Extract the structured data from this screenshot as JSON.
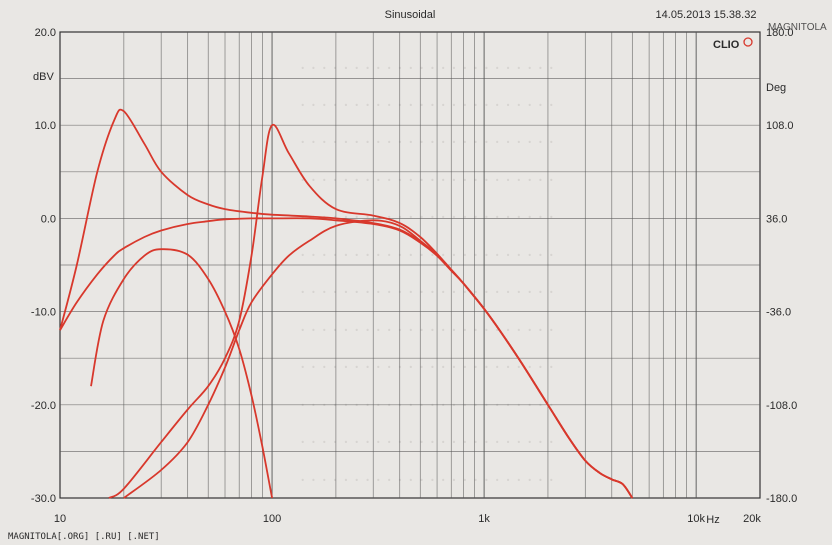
{
  "watermark_top": "MAGNITOLA",
  "footer": "MAGNITOLA[.ORG] [.RU] [.NET]",
  "colors": {
    "curve": "#d8382c",
    "grid": "#555555",
    "paper": "#e9e7e4"
  },
  "chart_data": {
    "type": "line",
    "title": "Sinusoidal",
    "timestamp": "14.05.2013 15.38.32",
    "brand": "CLIO",
    "xscale": "log",
    "xlim": [
      10,
      20000
    ],
    "x_tick_labels": [
      {
        "x": 10,
        "label": "10"
      },
      {
        "x": 100,
        "label": "100"
      },
      {
        "x": 1000,
        "label": "1k"
      },
      {
        "x": 10000,
        "label": "10k"
      },
      {
        "x": 20000,
        "label": "20k"
      }
    ],
    "xunit": "Hz",
    "ylabel_left": "dBV",
    "ylim_left": [
      -30,
      20
    ],
    "left_ticks": [
      20,
      10,
      0,
      -10,
      -20,
      -30
    ],
    "left_tick_labels": [
      "20.0",
      "10.0",
      "0.0",
      "-10.0",
      "-20.0",
      "-30.0"
    ],
    "ylabel_right": "Deg",
    "ylim_right": [
      -180,
      180
    ],
    "right_ticks": [
      180,
      108,
      36,
      -36,
      -108,
      -180
    ],
    "right_tick_labels": [
      "180.0",
      "108.0",
      "36.0",
      "-36.0",
      "-108.0",
      "-180.0"
    ],
    "grid": true,
    "series": [
      {
        "x": [
          10,
          12,
          15,
          18,
          20,
          25,
          30,
          40,
          50,
          60,
          80,
          100,
          150,
          200,
          300,
          400,
          500,
          600,
          700,
          800,
          1000,
          1200,
          1500,
          2000,
          2500,
          3000,
          3500,
          4000,
          4500,
          5000
        ],
        "values": [
          -12,
          -5,
          5,
          10.5,
          11.5,
          8,
          5,
          2.5,
          1.5,
          1,
          0.6,
          0.4,
          0.2,
          0,
          -0.5,
          -1.2,
          -2.5,
          -4,
          -5.6,
          -7,
          -9.7,
          -12.2,
          -15.5,
          -20,
          -23.5,
          -26,
          -27.3,
          -28,
          -28.5,
          -30
        ]
      },
      {
        "x": [
          10,
          12,
          15,
          18,
          20,
          25,
          30,
          40,
          50,
          60,
          80,
          100,
          150,
          200,
          300,
          400,
          500,
          600,
          700,
          800,
          1000,
          1200,
          1500,
          2000,
          2500,
          3000,
          3500,
          4000,
          4500,
          5000
        ],
        "values": [
          -12,
          -9,
          -6,
          -4,
          -3.2,
          -2,
          -1.3,
          -0.6,
          -0.3,
          -0.1,
          0,
          0,
          0,
          -0.2,
          -0.6,
          -1.3,
          -2.6,
          -4,
          -5.6,
          -7,
          -9.7,
          -12.2,
          -15.5,
          -20,
          -23.5,
          -26,
          -27.3,
          -28,
          -28.5,
          -30
        ]
      },
      {
        "x": [
          14,
          16,
          20,
          25,
          30,
          40,
          50,
          60,
          70,
          80,
          90,
          100
        ],
        "values": [
          -18,
          -11,
          -6.5,
          -4,
          -3.3,
          -3.9,
          -6.5,
          -10,
          -14,
          -19,
          -24.5,
          -30
        ]
      },
      {
        "x": [
          17,
          20,
          30,
          40,
          50,
          60,
          70,
          80,
          90,
          100,
          120,
          150,
          200,
          300,
          400,
          500,
          600,
          700,
          800,
          1000,
          1200,
          1500,
          2000,
          2500,
          3000,
          3500,
          4000,
          4500,
          5000
        ],
        "values": [
          -30,
          -29,
          -24,
          -20.5,
          -18,
          -15,
          -11,
          -4,
          4.5,
          10,
          7,
          3.5,
          1,
          0.3,
          -0.5,
          -2,
          -3.8,
          -5.5,
          -7,
          -9.7,
          -12.2,
          -15.5,
          -20,
          -23.5,
          -26,
          -27.3,
          -28,
          -28.5,
          -30
        ]
      },
      {
        "x": [
          20,
          30,
          40,
          50,
          60,
          70,
          80,
          100,
          120,
          150,
          200,
          300,
          400,
          500,
          600,
          700,
          800,
          1000,
          1200,
          1500,
          2000,
          2500,
          3000,
          3500,
          4000,
          4500,
          5000
        ],
        "values": [
          -30,
          -27,
          -24,
          -20,
          -16,
          -12,
          -9,
          -6,
          -4,
          -2.4,
          -0.8,
          -0.2,
          -0.8,
          -2.4,
          -3.9,
          -5.5,
          -7,
          -9.7,
          -12.2,
          -15.5,
          -20,
          -23.5,
          -26,
          -27.3,
          -28,
          -28.5,
          -30
        ]
      }
    ]
  }
}
